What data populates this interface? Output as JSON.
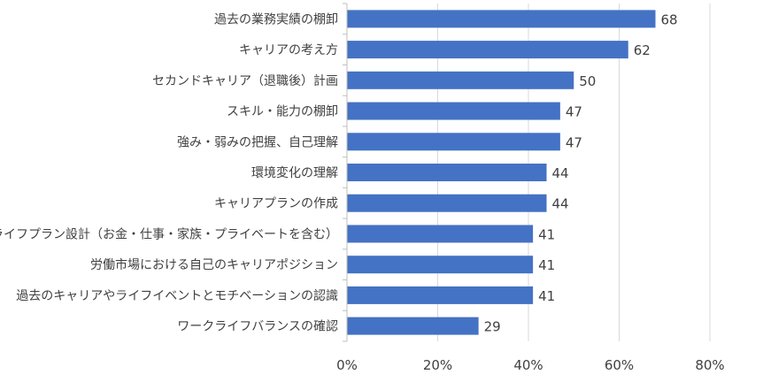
{
  "chart_data": {
    "type": "bar",
    "orientation": "horizontal",
    "categories": [
      "過去の業務実績の棚卸",
      "キャリアの考え方",
      "セカンドキャリア（退職後）計画",
      "スキル・能力の棚卸",
      "強み・弱みの把握、自己理解",
      "環境変化の理解",
      "キャリアプランの作成",
      "ライフプラン設計（お金・仕事・家族・プライベートを含む）",
      "労働市場における自己のキャリアポジション",
      "過去のキャリアやライフイベントとモチベーションの認識",
      "ワークライフバランスの確認"
    ],
    "values": [
      68,
      62,
      50,
      47,
      47,
      44,
      44,
      41,
      41,
      41,
      29
    ],
    "xlim": [
      0,
      80
    ],
    "x_ticks": [
      0,
      20,
      40,
      60,
      80
    ],
    "x_tick_labels": [
      "0%",
      "20%",
      "40%",
      "60%",
      "80%"
    ],
    "grid": "vertical",
    "legend": "none",
    "bar_color": "#4472C4",
    "title": "",
    "xlabel": "",
    "ylabel": ""
  }
}
